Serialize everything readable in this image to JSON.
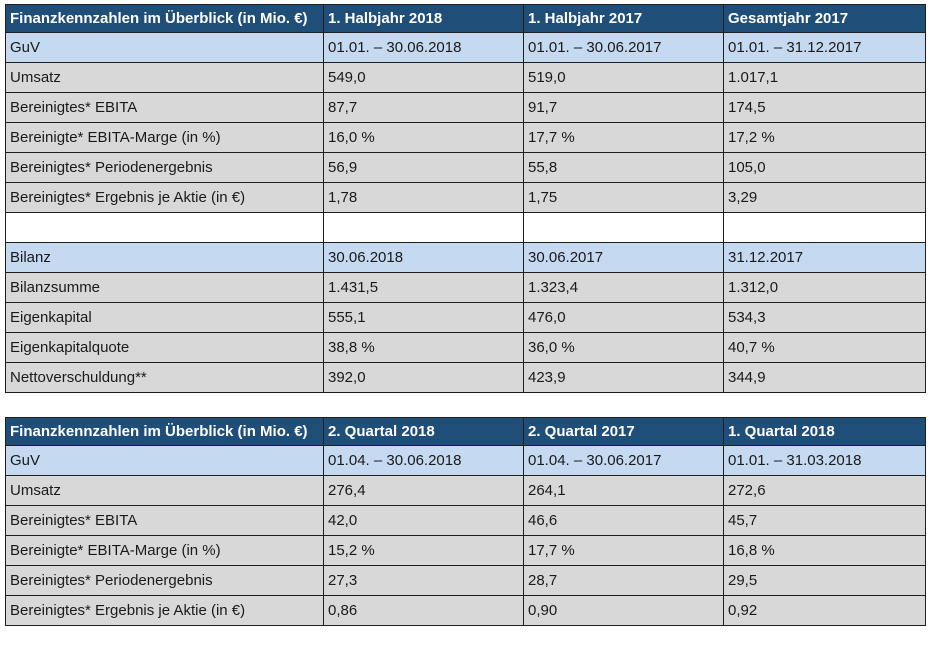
{
  "table1": {
    "header": [
      "Finanzkennzahlen im Überblick (in Mio. €)",
      "1. Halbjahr 2018",
      "1. Halbjahr 2017",
      "Gesamtjahr 2017"
    ],
    "guv": [
      "GuV",
      "01.01. – 30.06.2018",
      "01.01. – 30.06.2017",
      "01.01. – 31.12.2017"
    ],
    "guv_rows": [
      [
        "Umsatz",
        "549,0",
        "519,0",
        "1.017,1"
      ],
      [
        "Bereinigtes* EBITA",
        "87,7",
        "91,7",
        "174,5"
      ],
      [
        "Bereinigte* EBITA-Marge (in %)",
        "16,0 %",
        "17,7 %",
        "17,2 %"
      ],
      [
        "Bereinigtes* Periodenergebnis",
        "56,9",
        "55,8",
        "105,0"
      ],
      [
        "Bereinigtes* Ergebnis je Aktie (in €)",
        "1,78",
        "1,75",
        "3,29"
      ]
    ],
    "bilanz": [
      "Bilanz",
      "30.06.2018",
      "30.06.2017",
      "31.12.2017"
    ],
    "bilanz_rows": [
      [
        "Bilanzsumme",
        "1.431,5",
        "1.323,4",
        "1.312,0"
      ],
      [
        "Eigenkapital",
        "555,1",
        "476,0",
        "534,3"
      ],
      [
        "Eigenkapitalquote",
        "38,8 %",
        "36,0 %",
        "40,7 %"
      ],
      [
        "Nettoverschuldung**",
        "392,0",
        "423,9",
        "344,9"
      ]
    ]
  },
  "table2": {
    "header": [
      "Finanzkennzahlen im Überblick (in Mio. €)",
      "2. Quartal 2018",
      "2. Quartal 2017",
      "1. Quartal 2018"
    ],
    "guv": [
      "GuV",
      "01.04. – 30.06.2018",
      "01.04. – 30.06.2017",
      "01.01. – 31.03.2018"
    ],
    "guv_rows": [
      [
        "Umsatz",
        "276,4",
        "264,1",
        "272,6"
      ],
      [
        "Bereinigtes* EBITA",
        "42,0",
        "46,6",
        "45,7"
      ],
      [
        "Bereinigte* EBITA-Marge (in %)",
        "15,2 %",
        "17,7 %",
        "16,8 %"
      ],
      [
        "Bereinigtes* Periodenergebnis",
        "27,3",
        "28,7",
        "29,5"
      ],
      [
        "Bereinigtes* Ergebnis je Aktie (in €)",
        "0,86",
        "0,90",
        "0,92"
      ]
    ]
  }
}
